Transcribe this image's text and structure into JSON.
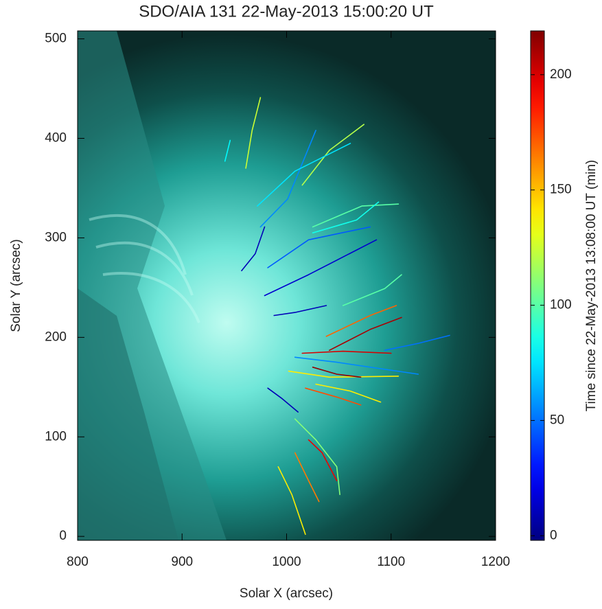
{
  "chart_data": {
    "type": "tracks",
    "title": "SDO/AIA 131 22-May-2013 15:00:20 UT",
    "x_label": "Solar X (arcsec)",
    "y_label": "Solar Y (arcsec)",
    "xlim": [
      800,
      1200
    ],
    "ylim": [
      -4,
      508
    ],
    "xticks": [
      800,
      900,
      1000,
      1100,
      1200
    ],
    "yticks": [
      0,
      100,
      200,
      300,
      400,
      500
    ],
    "colormap": "jet",
    "colorbar": {
      "label": "Time since 22-May-2013 13:08:00 UT (min)",
      "lim": [
        -2,
        219
      ],
      "ticks": [
        0,
        50,
        100,
        150,
        200
      ]
    },
    "tracks": [
      {
        "x": [
          957,
          970,
          979
        ],
        "y": [
          267,
          284,
          311
        ],
        "t": 10
      },
      {
        "x": [
          975,
          1001,
          1028
        ],
        "y": [
          311,
          339,
          408
        ],
        "t": 55
      },
      {
        "x": [
          1015,
          1041,
          1074
        ],
        "y": [
          353,
          388,
          414
        ],
        "t": 120
      },
      {
        "x": [
          972,
          1008,
          1061
        ],
        "y": [
          332,
          367,
          395
        ],
        "t": 75
      },
      {
        "x": [
          982,
          1021,
          1080
        ],
        "y": [
          270,
          298,
          311
        ],
        "t": 45
      },
      {
        "x": [
          1025,
          1072,
          1107
        ],
        "y": [
          311,
          332,
          334
        ],
        "t": 100
      },
      {
        "x": [
          979,
          1021,
          1086
        ],
        "y": [
          242,
          263,
          298
        ],
        "t": 15
      },
      {
        "x": [
          1038,
          1080,
          1105
        ],
        "y": [
          201,
          222,
          232
        ],
        "t": 170
      },
      {
        "x": [
          1041,
          1080,
          1110
        ],
        "y": [
          187,
          208,
          220
        ],
        "t": 210
      },
      {
        "x": [
          1094,
          1126,
          1156
        ],
        "y": [
          187,
          194,
          202
        ],
        "t": 50
      },
      {
        "x": [
          1015,
          1054,
          1100
        ],
        "y": [
          184,
          186,
          184
        ],
        "t": 200
      },
      {
        "x": [
          1002,
          1041,
          1107
        ],
        "y": [
          166,
          160,
          161
        ],
        "t": 140
      },
      {
        "x": [
          1025,
          1048,
          1071
        ],
        "y": [
          170,
          163,
          160
        ],
        "t": 215
      },
      {
        "x": [
          982,
          995,
          1011
        ],
        "y": [
          149,
          139,
          125
        ],
        "t": 10
      },
      {
        "x": [
          1018,
          1048,
          1071
        ],
        "y": [
          149,
          140,
          132
        ],
        "t": 175
      },
      {
        "x": [
          1028,
          1061,
          1090
        ],
        "y": [
          153,
          146,
          135
        ],
        "t": 140
      },
      {
        "x": [
          1008,
          1028,
          1048,
          1051
        ],
        "y": [
          118,
          97,
          70,
          42
        ],
        "t": 110
      },
      {
        "x": [
          1021,
          1034,
          1048
        ],
        "y": [
          97,
          84,
          56
        ],
        "t": 195
      },
      {
        "x": [
          992,
          1005,
          1018
        ],
        "y": [
          70,
          42,
          2
        ],
        "t": 140
      },
      {
        "x": [
          1008,
          1021,
          1031
        ],
        "y": [
          84,
          56,
          35
        ],
        "t": 165
      },
      {
        "x": [
          961,
          967,
          975
        ],
        "y": [
          370,
          408,
          441
        ],
        "t": 125
      },
      {
        "x": [
          941,
          946
        ],
        "y": [
          377,
          398
        ],
        "t": 80
      },
      {
        "x": [
          1025,
          1067,
          1088
        ],
        "y": [
          305,
          318,
          336
        ],
        "t": 85
      },
      {
        "x": [
          988,
          1008,
          1038
        ],
        "y": [
          222,
          225,
          232
        ],
        "t": 10
      },
      {
        "x": [
          1008,
          1048,
          1126
        ],
        "y": [
          180,
          175,
          163
        ],
        "t": 55
      },
      {
        "x": [
          1054,
          1094,
          1110
        ],
        "y": [
          232,
          249,
          263
        ],
        "t": 100
      }
    ]
  }
}
